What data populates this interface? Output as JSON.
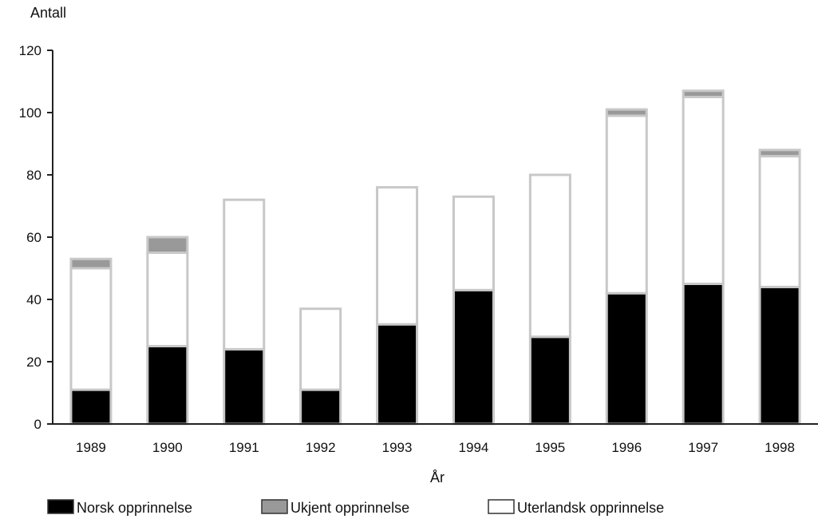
{
  "chart_data": {
    "type": "bar",
    "stacked": true,
    "categories": [
      "1989",
      "1990",
      "1991",
      "1992",
      "1993",
      "1994",
      "1995",
      "1996",
      "1997",
      "1998"
    ],
    "series": [
      {
        "name": "Norsk opprinnelse",
        "color": "#000000",
        "values": [
          11,
          25,
          24,
          11,
          32,
          43,
          28,
          42,
          45,
          44
        ]
      },
      {
        "name": "Uterlandsk opprinnelse",
        "color": "#ffffff",
        "values": [
          39,
          30,
          48,
          26,
          44,
          30,
          52,
          57,
          60,
          42
        ]
      },
      {
        "name": "Ukjent opprinnelse",
        "color": "#999999",
        "values": [
          3,
          5,
          0,
          0,
          0,
          0,
          0,
          2,
          2,
          2
        ]
      }
    ],
    "legend_order": [
      "Norsk opprinnelse",
      "Ukjent opprinnelse",
      "Uterlandsk opprinnelse"
    ],
    "xlabel": "År",
    "ylabel": "Antall",
    "ylim": [
      0,
      120
    ],
    "yticks": [
      0,
      20,
      40,
      60,
      80,
      100,
      120
    ],
    "ytick_labels": [
      "0",
      "20",
      "40",
      "60",
      "80",
      "100",
      "120"
    ],
    "grid": false,
    "legend_position": "bottom"
  }
}
